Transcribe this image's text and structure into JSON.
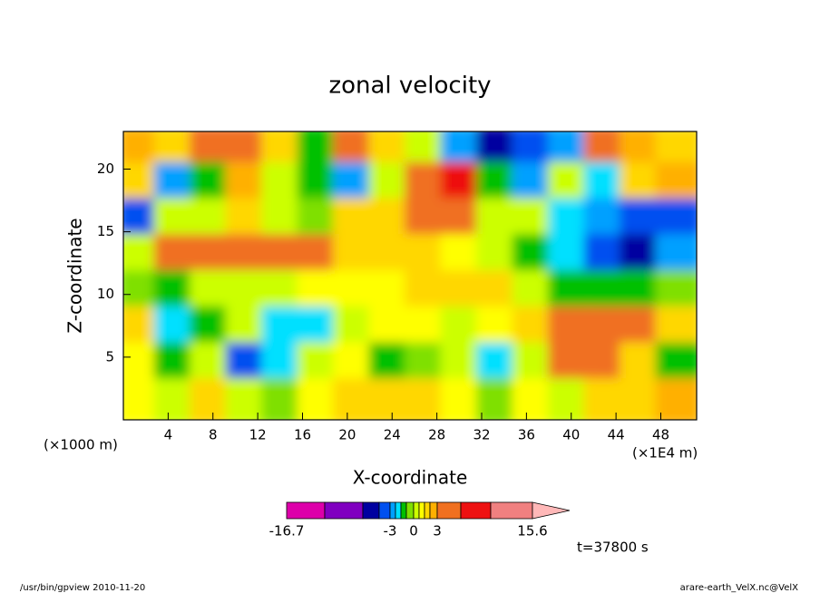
{
  "chart_data": {
    "type": "contour",
    "title": "zonal velocity",
    "x_label": "X-coordinate",
    "y_label": "Z-coordinate",
    "y_unit": "(×1000 m)",
    "x_unit": "(×1E4 m)",
    "time_label": "t=37800 s",
    "footer_left": "/usr/bin/gpview  2010-11-20",
    "footer_right": "arare-earth_VelX.nc@VelX",
    "xlim": [
      0,
      51.2
    ],
    "ylim": [
      0,
      23
    ],
    "xticks": [
      4,
      8,
      12,
      16,
      20,
      24,
      28,
      32,
      36,
      40,
      44,
      48
    ],
    "yticks": [
      5,
      10,
      15,
      20
    ],
    "z": [
      [
        2,
        1,
        4,
        5,
        1,
        -1,
        3,
        1,
        0,
        -3,
        -8,
        -4,
        -3,
        4,
        2,
        1
      ],
      [
        1,
        -3,
        -1,
        2,
        0,
        -1,
        -3,
        0,
        5,
        6,
        -1,
        -3,
        0,
        -2,
        1,
        2
      ],
      [
        -5,
        0,
        0,
        1,
        0,
        -0.5,
        1,
        1,
        5,
        3,
        0,
        0,
        -2,
        -3,
        -4,
        -5
      ],
      [
        0,
        3,
        5,
        5,
        3,
        3,
        1,
        1,
        1,
        0.5,
        0,
        -1,
        -2,
        -5,
        -6,
        -3
      ],
      [
        -0.5,
        -1,
        0,
        0,
        0,
        0.5,
        0.5,
        0.5,
        1,
        1,
        1,
        0,
        -1,
        -1,
        -1,
        -0.5
      ],
      [
        1,
        -2,
        -1,
        0,
        -2,
        -2,
        0,
        0.5,
        0.5,
        0,
        0.5,
        1,
        3,
        5,
        3,
        1
      ],
      [
        0.5,
        -1,
        0,
        -4,
        -2,
        0,
        0.5,
        -1,
        -0.5,
        0,
        -2,
        0,
        5,
        4,
        1,
        -1
      ],
      [
        0.5,
        0,
        1,
        0,
        -0.5,
        0.5,
        1,
        1,
        1,
        0.5,
        -0.5,
        0.5,
        0,
        1,
        1,
        2
      ]
    ],
    "levels": [
      -16.7,
      -12,
      -8,
      -5,
      -3,
      -2,
      -1,
      -0.5,
      0,
      0.5,
      1,
      2,
      3,
      6,
      9,
      15.6
    ],
    "colors": [
      "#dd00aa",
      "#8000c0",
      "#0000a0",
      "#0050f0",
      "#00a0ff",
      "#00e0ff",
      "#00c000",
      "#7fe000",
      "#ccff00",
      "#ffff00",
      "#ffd700",
      "#ffb000",
      "#f07020",
      "#ee1111",
      "#f08080",
      "#ffb8b8"
    ],
    "colorbar_ticks": [
      -16.7,
      -3,
      0,
      3,
      15.6
    ]
  }
}
